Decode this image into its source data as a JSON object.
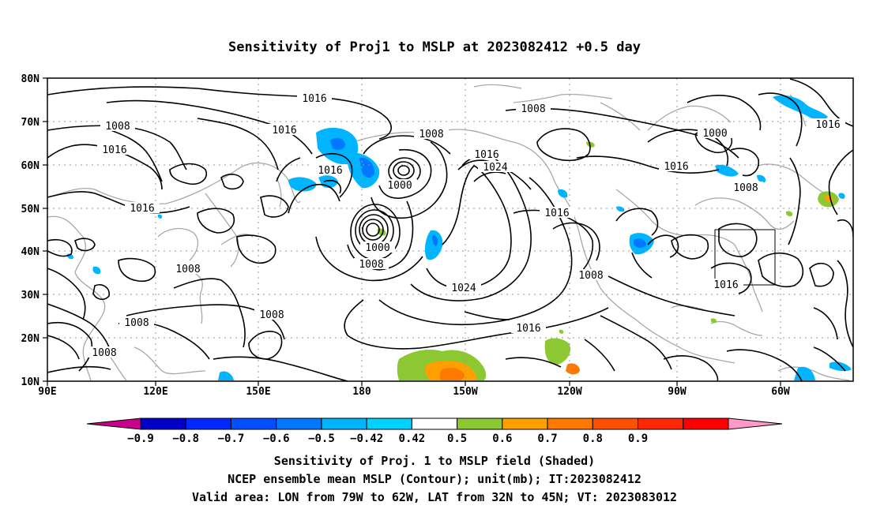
{
  "title": "Sensitivity of Proj1 to MSLP at 2023082412 +0.5 day",
  "lat_labels": [
    "80N",
    "70N",
    "60N",
    "50N",
    "40N",
    "30N",
    "20N",
    "10N"
  ],
  "lon_labels": [
    "90E",
    "120E",
    "150E",
    "180",
    "150W",
    "120W",
    "90W",
    "60W"
  ],
  "contour_labels": [
    "1016",
    "1008",
    "1008",
    "1016",
    "1016",
    "1008",
    "1016",
    "1016",
    "1000",
    "1016",
    "1000",
    "1008",
    "1024",
    "1000",
    "1016",
    "1016",
    "1008",
    "1008",
    "1016",
    "1024",
    "1008",
    "1008",
    "1008",
    "1016",
    "1008",
    "1016"
  ],
  "colorbar": {
    "labels": [
      "−0.9",
      "−0.8",
      "−0.7",
      "−0.6",
      "−0.5",
      "−0.42",
      "0.42",
      "0.5",
      "0.6",
      "0.7",
      "0.8",
      "0.9"
    ],
    "colors": [
      "#c8008c",
      "#0000c8",
      "#0028ff",
      "#0050ff",
      "#0078ff",
      "#00b4ff",
      "#00d2ff",
      "#ffffff",
      "#8cc832",
      "#ffa000",
      "#ff7800",
      "#ff5000",
      "#ff2800",
      "#ff0000",
      "#ff9ac8"
    ]
  },
  "footer": {
    "line1": "Sensitivity of Proj. 1 to MSLP field (Shaded)",
    "line2": "NCEP ensemble mean MSLP (Contour); unit(mb); IT:2023082412",
    "line3": "Valid area: LON from 79W to 62W, LAT from 32N to 45N; VT: 2023083012"
  }
}
